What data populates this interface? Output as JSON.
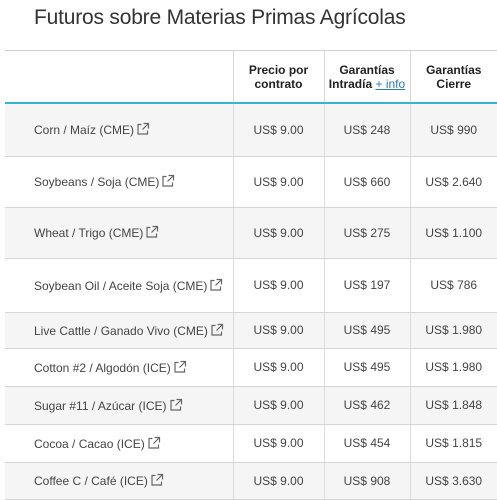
{
  "page": {
    "title": "Futuros sobre Materias Primas Agrícolas"
  },
  "table": {
    "headers": {
      "name": "",
      "price_line1": "Precio por",
      "price_line2": "contrato",
      "intraday_line1": "Garantías",
      "intraday_line2": "Intradía",
      "intraday_link": "+ info",
      "close_line1": "Garantías",
      "close_line2": "Cierre"
    },
    "rows": [
      {
        "name": "Corn / Maíz (CME)",
        "price": "US$ 9.00",
        "intraday": "US$ 248",
        "close": "US$ 990"
      },
      {
        "name": "Soybeans / Soja (CME)",
        "price": "US$ 9.00",
        "intraday": "US$ 660",
        "close": "US$ 2.640"
      },
      {
        "name": "Wheat / Trigo (CME)",
        "price": "US$ 9.00",
        "intraday": "US$ 275",
        "close": "US$ 1.100"
      },
      {
        "name": "Soybean Oil / Aceite Soja (CME)",
        "price": "US$ 9.00",
        "intraday": "US$ 197",
        "close": "US$ 786"
      },
      {
        "name": "Live Cattle / Ganado Vivo (CME)",
        "price": "US$ 9.00",
        "intraday": "US$ 495",
        "close": "US$ 1.980"
      },
      {
        "name": "Cotton #2 / Algodón (ICE)",
        "price": "US$ 9.00",
        "intraday": "US$ 495",
        "close": "US$ 1.980"
      },
      {
        "name": "Sugar #11 / Azúcar (ICE)",
        "price": "US$ 9.00",
        "intraday": "US$ 462",
        "close": "US$ 1.848"
      },
      {
        "name": "Cocoa / Cacao (ICE)",
        "price": "US$ 9.00",
        "intraday": "US$ 454",
        "close": "US$ 1.815"
      },
      {
        "name": "Coffee C / Café (ICE)",
        "price": "US$ 9.00",
        "intraday": "US$ 908",
        "close": "US$ 3.630"
      }
    ],
    "row_icon": "external-link-icon"
  },
  "colors": {
    "header_accent": "#35b6c9",
    "link": "#2a7ab8",
    "stripe": "#f5f5f5"
  }
}
